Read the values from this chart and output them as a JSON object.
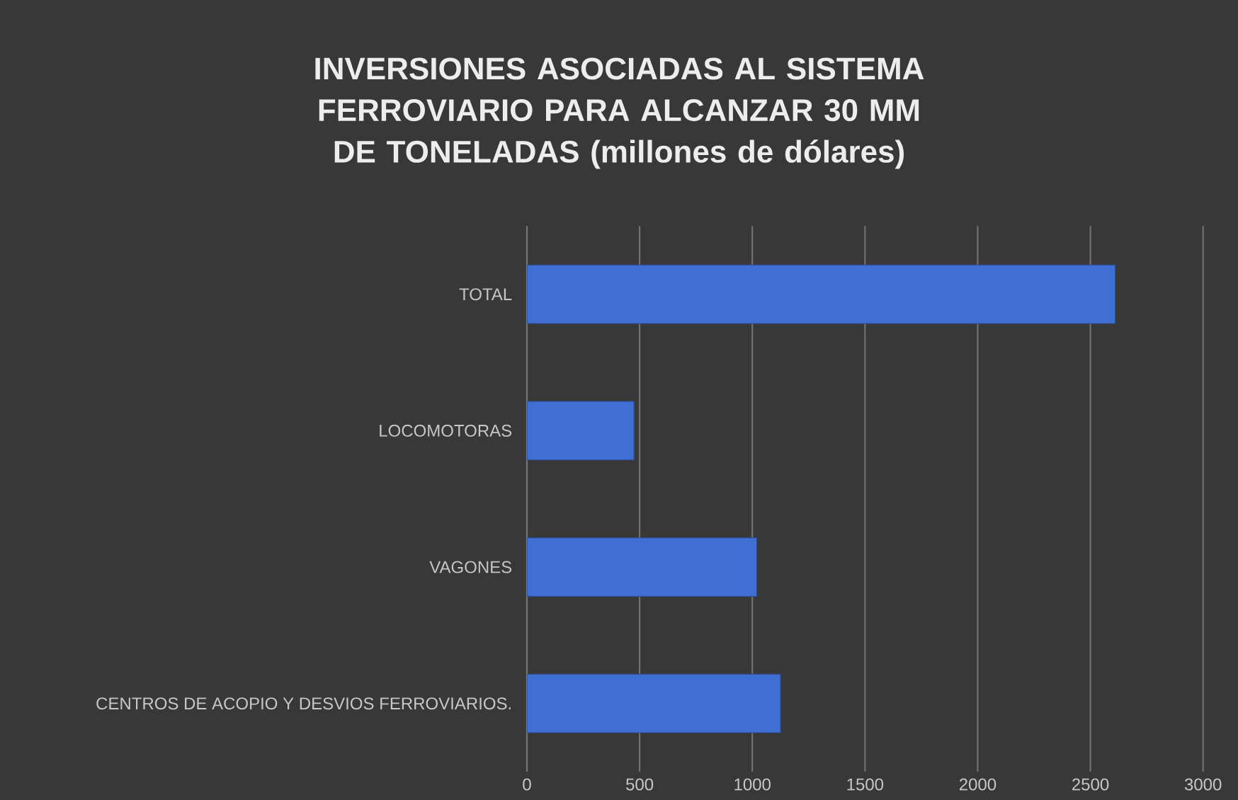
{
  "chart_data": {
    "type": "bar",
    "orientation": "horizontal",
    "title": "INVERSIONES ASOCIADAS AL SISTEMA FERROVIARIO PARA ALCANZAR 30 MM DE TONELADAS (millones de dólares)",
    "categories": [
      "TOTAL",
      "LOCOMOTORAS",
      "VAGONES",
      "CENTROS DE ACOPIO Y DESVIOS FERROVIARIOS."
    ],
    "values": [
      2610,
      475,
      1020,
      1125
    ],
    "color": "#3f6fd2",
    "xlim": [
      0,
      3000
    ],
    "xticks": [
      0,
      500,
      1000,
      1500,
      2000,
      2500,
      3000
    ],
    "grid": "x"
  }
}
